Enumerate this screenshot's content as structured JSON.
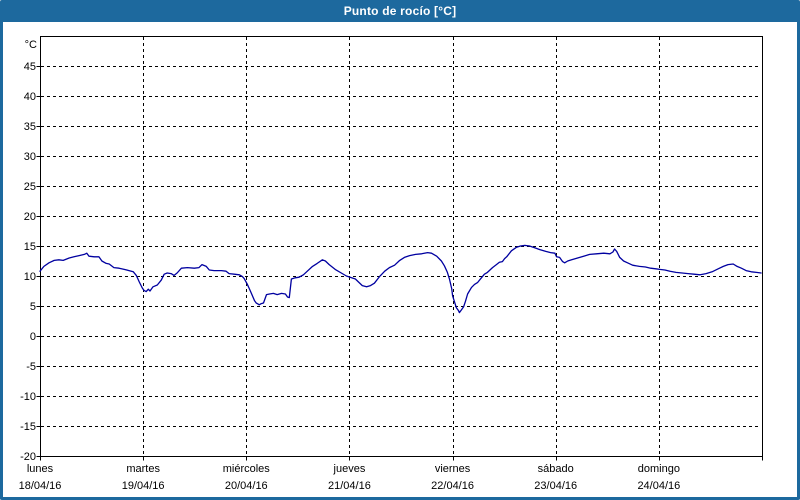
{
  "window": {
    "title": "Punto de rocío [°C]"
  },
  "colors": {
    "titlebar_bg": "#1d699e",
    "window_border": "#1d699e",
    "title_text": "#ffffff",
    "plot_bg": "#ffffff",
    "grid": "#000000",
    "frame": "#000000",
    "label_text": "#000000",
    "line": "#0000a0"
  },
  "chart_data": {
    "type": "line",
    "title": "Punto de rocío [°C]",
    "y_unit_label": "°C",
    "ylabel": "",
    "xlabel": "",
    "ylim": [
      -20,
      50
    ],
    "y_ticks": [
      45,
      40,
      35,
      30,
      25,
      20,
      15,
      10,
      5,
      0,
      -5,
      -10,
      -15,
      -20
    ],
    "grid": "dashed",
    "legend": "none",
    "x_axis": {
      "hours_total": 168,
      "tick_every_hours": 24,
      "days": [
        {
          "name": "lunes",
          "date": "18/04/16"
        },
        {
          "name": "martes",
          "date": "19/04/16"
        },
        {
          "name": "miércoles",
          "date": "20/04/16"
        },
        {
          "name": "jueves",
          "date": "21/04/16"
        },
        {
          "name": "viernes",
          "date": "22/04/16"
        },
        {
          "name": "sábado",
          "date": "23/04/16"
        },
        {
          "name": "domingo",
          "date": "24/04/16"
        }
      ]
    },
    "series": [
      {
        "name": "Punto de rocío",
        "color": "#0000a0",
        "points": [
          [
            0,
            10.8
          ],
          [
            0.9,
            11.6
          ],
          [
            2.1,
            12.2
          ],
          [
            3.3,
            12.6
          ],
          [
            4.4,
            12.7
          ],
          [
            5.4,
            12.6
          ],
          [
            6.8,
            13
          ],
          [
            7.9,
            13.2
          ],
          [
            9.1,
            13.4
          ],
          [
            10.3,
            13.6
          ],
          [
            10.9,
            13.8
          ],
          [
            11.4,
            13.3
          ],
          [
            12.6,
            13.2
          ],
          [
            13.7,
            13.2
          ],
          [
            14.4,
            12.5
          ],
          [
            15.4,
            12.1
          ],
          [
            16.1,
            12
          ],
          [
            17.2,
            11.4
          ],
          [
            18.4,
            11.3
          ],
          [
            19.6,
            11.1
          ],
          [
            20.7,
            10.9
          ],
          [
            21.7,
            10.7
          ],
          [
            22.4,
            10.1
          ],
          [
            23.1,
            9
          ],
          [
            23.8,
            8
          ],
          [
            24.2,
            7.6
          ],
          [
            24.7,
            7.4
          ],
          [
            25.2,
            7.8
          ],
          [
            25.6,
            7.5
          ],
          [
            26.3,
            8.2
          ],
          [
            27.3,
            8.5
          ],
          [
            28.2,
            9.3
          ],
          [
            28.9,
            10.3
          ],
          [
            29.6,
            10.5
          ],
          [
            30.5,
            10.4
          ],
          [
            31.2,
            10.1
          ],
          [
            31.9,
            10.5
          ],
          [
            32.9,
            11.3
          ],
          [
            34.3,
            11.4
          ],
          [
            35.9,
            11.3
          ],
          [
            37,
            11.4
          ],
          [
            37.7,
            11.9
          ],
          [
            38.7,
            11.6
          ],
          [
            39.4,
            11
          ],
          [
            40.5,
            10.9
          ],
          [
            42.2,
            10.9
          ],
          [
            43.3,
            10.8
          ],
          [
            44,
            10.4
          ],
          [
            45.2,
            10.3
          ],
          [
            46.4,
            10.2
          ],
          [
            47.1,
            9.9
          ],
          [
            47.5,
            9.6
          ],
          [
            48.2,
            8.7
          ],
          [
            48.7,
            7.9
          ],
          [
            49.2,
            7.1
          ],
          [
            49.9,
            5.9
          ],
          [
            50.3,
            5.5
          ],
          [
            50.8,
            5.3
          ],
          [
            51,
            5.2
          ],
          [
            51.5,
            5.4
          ],
          [
            52,
            5.5
          ],
          [
            52.7,
            6.9
          ],
          [
            53.4,
            7
          ],
          [
            54.3,
            7.1
          ],
          [
            55.2,
            6.9
          ],
          [
            56.2,
            7.1
          ],
          [
            57.1,
            7
          ],
          [
            57.6,
            6.5
          ],
          [
            58,
            6.4
          ],
          [
            58.5,
            9.5
          ],
          [
            59.4,
            9.7
          ],
          [
            60.3,
            9.8
          ],
          [
            61.3,
            10.2
          ],
          [
            62.2,
            10.8
          ],
          [
            63.4,
            11.6
          ],
          [
            64.5,
            12.1
          ],
          [
            65.7,
            12.7
          ],
          [
            66.4,
            12.5
          ],
          [
            67.3,
            11.9
          ],
          [
            68.7,
            11.1
          ],
          [
            70.1,
            10.5
          ],
          [
            71.3,
            10
          ],
          [
            72.5,
            9.7
          ],
          [
            73.4,
            9.5
          ],
          [
            74.1,
            9
          ],
          [
            75,
            8.4
          ],
          [
            76,
            8.2
          ],
          [
            76.9,
            8.4
          ],
          [
            77.8,
            8.8
          ],
          [
            79,
            9.9
          ],
          [
            80.2,
            10.8
          ],
          [
            81.3,
            11.4
          ],
          [
            82.5,
            11.8
          ],
          [
            83.7,
            12.6
          ],
          [
            84.8,
            13.1
          ],
          [
            86,
            13.4
          ],
          [
            87.4,
            13.6
          ],
          [
            88.8,
            13.7
          ],
          [
            90.2,
            13.9
          ],
          [
            91.1,
            13.8
          ],
          [
            92.3,
            13.3
          ],
          [
            93.4,
            12.5
          ],
          [
            94.1,
            11.7
          ],
          [
            94.8,
            10.6
          ],
          [
            95.3,
            9.4
          ],
          [
            95.8,
            7.9
          ],
          [
            96,
            6.7
          ],
          [
            96.5,
            5.6
          ],
          [
            96.9,
            4.7
          ],
          [
            97.4,
            4.2
          ],
          [
            97.6,
            3.9
          ],
          [
            98.1,
            4.4
          ],
          [
            98.6,
            4.9
          ],
          [
            99,
            5.8
          ],
          [
            99.5,
            7
          ],
          [
            100.4,
            8.1
          ],
          [
            101.1,
            8.6
          ],
          [
            101.8,
            8.9
          ],
          [
            102.7,
            9.7
          ],
          [
            103.4,
            10.3
          ],
          [
            104.1,
            10.6
          ],
          [
            105.3,
            11.4
          ],
          [
            106.2,
            11.9
          ],
          [
            106.9,
            12.3
          ],
          [
            107.6,
            12.4
          ],
          [
            108.1,
            12.9
          ],
          [
            108.6,
            13.2
          ],
          [
            109.7,
            14.2
          ],
          [
            110.9,
            14.8
          ],
          [
            111.8,
            15
          ],
          [
            112.8,
            15.1
          ],
          [
            113.9,
            15
          ],
          [
            115.1,
            14.7
          ],
          [
            116.3,
            14.4
          ],
          [
            117.7,
            14.1
          ],
          [
            118.8,
            13.9
          ],
          [
            119.8,
            13.8
          ],
          [
            120.2,
            13.2
          ],
          [
            120.9,
            13.1
          ],
          [
            121.6,
            12.4
          ],
          [
            122.1,
            12.2
          ],
          [
            122.8,
            12.5
          ],
          [
            123.7,
            12.7
          ],
          [
            125.1,
            13
          ],
          [
            126.5,
            13.3
          ],
          [
            127.9,
            13.6
          ],
          [
            129.5,
            13.7
          ],
          [
            131.2,
            13.8
          ],
          [
            132.6,
            13.7
          ],
          [
            133.3,
            14
          ],
          [
            133.7,
            14.5
          ],
          [
            134.2,
            14.1
          ],
          [
            134.9,
            13.1
          ],
          [
            135.8,
            12.5
          ],
          [
            136.7,
            12.2
          ],
          [
            137.9,
            11.8
          ],
          [
            139.5,
            11.6
          ],
          [
            140.9,
            11.5
          ],
          [
            142.1,
            11.3
          ],
          [
            143.3,
            11.2
          ],
          [
            144.2,
            11.1
          ],
          [
            145.4,
            11
          ],
          [
            146.6,
            10.8
          ],
          [
            148,
            10.6
          ],
          [
            149.4,
            10.5
          ],
          [
            150.8,
            10.4
          ],
          [
            152.2,
            10.3
          ],
          [
            153.6,
            10.2
          ],
          [
            155,
            10.4
          ],
          [
            156.4,
            10.7
          ],
          [
            157.8,
            11.2
          ],
          [
            159,
            11.6
          ],
          [
            160.1,
            11.9
          ],
          [
            161.3,
            12
          ],
          [
            162.2,
            11.6
          ],
          [
            163.2,
            11.3
          ],
          [
            164.3,
            10.9
          ],
          [
            165.5,
            10.7
          ],
          [
            166.7,
            10.6
          ],
          [
            167.8,
            10.5
          ]
        ]
      }
    ]
  }
}
